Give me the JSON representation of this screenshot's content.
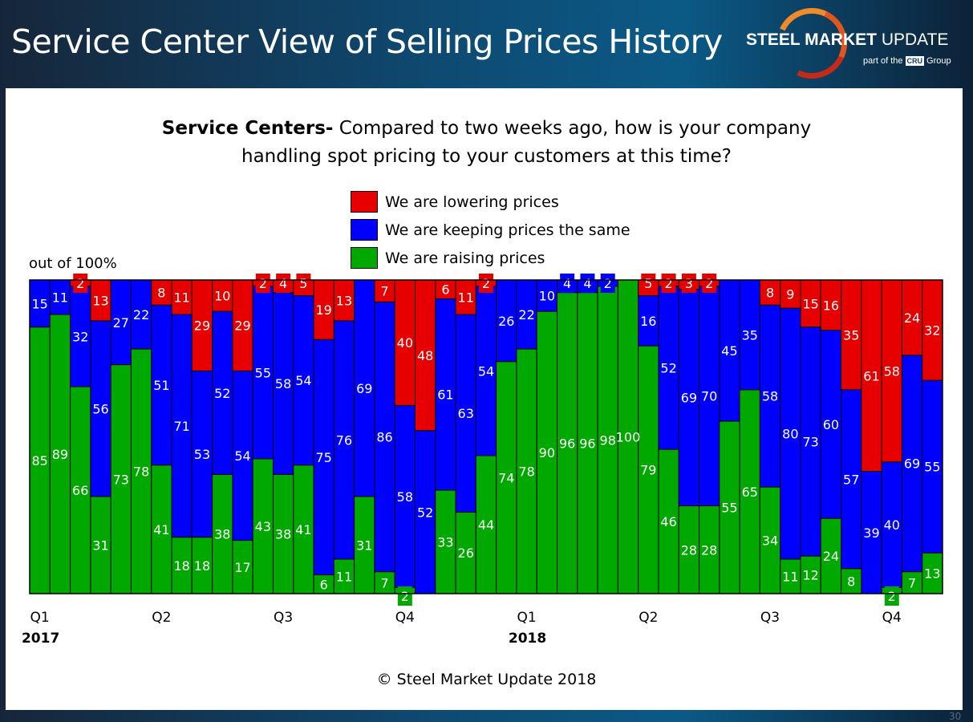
{
  "header": {
    "title": "Service Center View of Selling Prices History",
    "logo": {
      "brand_bold": "STEEL MARKET",
      "brand_light": "UPDATE",
      "sub_pre": "part of the",
      "sub_mark": "CRU",
      "sub_post": "Group"
    }
  },
  "question": {
    "bold": "Service Centers-",
    "line1": " Compared to two weeks ago, how is your company",
    "line2": "handling spot pricing to your customers at this time?"
  },
  "footer": {
    "copyright": "© Steel Market Update 2018",
    "page": "30"
  },
  "chart_data": {
    "type": "bar",
    "stacked": true,
    "unit_label": "out of 100%",
    "ylim": [
      0,
      100
    ],
    "legend": {
      "placement": "top-center",
      "entries": [
        "We are lowering prices",
        "We are keeping prices the same",
        "We are raising prices"
      ]
    },
    "colors": {
      "lowering": "#e60000",
      "same": "#0000ff",
      "raising": "#00a800"
    },
    "quarter_ticks": [
      {
        "bar": 1,
        "label": "Q1",
        "year": "2017"
      },
      {
        "bar": 7,
        "label": "Q2"
      },
      {
        "bar": 13,
        "label": "Q3"
      },
      {
        "bar": 19,
        "label": "Q4"
      },
      {
        "bar": 25,
        "label": "Q1",
        "year": "2018"
      },
      {
        "bar": 31,
        "label": "Q2"
      },
      {
        "bar": 37,
        "label": "Q3"
      },
      {
        "bar": 43,
        "label": "Q4"
      }
    ],
    "series": [
      {
        "name": "We are raising prices",
        "key": "raising",
        "values": [
          85,
          89,
          66,
          31,
          73,
          78,
          41,
          18,
          18,
          38,
          17,
          43,
          38,
          41,
          6,
          11,
          31,
          7,
          2,
          0,
          33,
          26,
          44,
          74,
          78,
          90,
          96,
          96,
          98,
          100,
          79,
          46,
          28,
          28,
          55,
          65,
          34,
          11,
          12,
          24,
          8,
          0,
          2,
          7,
          13
        ]
      },
      {
        "name": "We are keeping prices the same",
        "key": "same",
        "values": [
          15,
          11,
          32,
          56,
          27,
          22,
          51,
          71,
          53,
          52,
          54,
          55,
          58,
          54,
          75,
          76,
          69,
          86,
          58,
          52,
          61,
          63,
          54,
          26,
          22,
          10,
          4,
          4,
          2,
          0,
          16,
          52,
          69,
          70,
          45,
          35,
          58,
          80,
          73,
          60,
          57,
          39,
          40,
          69,
          55
        ]
      },
      {
        "name": "We are lowering prices",
        "key": "lowering",
        "values": [
          0,
          0,
          2,
          13,
          0,
          0,
          8,
          11,
          29,
          10,
          29,
          2,
          4,
          5,
          19,
          13,
          0,
          7,
          40,
          48,
          6,
          11,
          2,
          0,
          0,
          0,
          0,
          0,
          0,
          0,
          5,
          2,
          3,
          2,
          0,
          0,
          8,
          9,
          15,
          16,
          35,
          61,
          58,
          24,
          32
        ]
      }
    ]
  }
}
